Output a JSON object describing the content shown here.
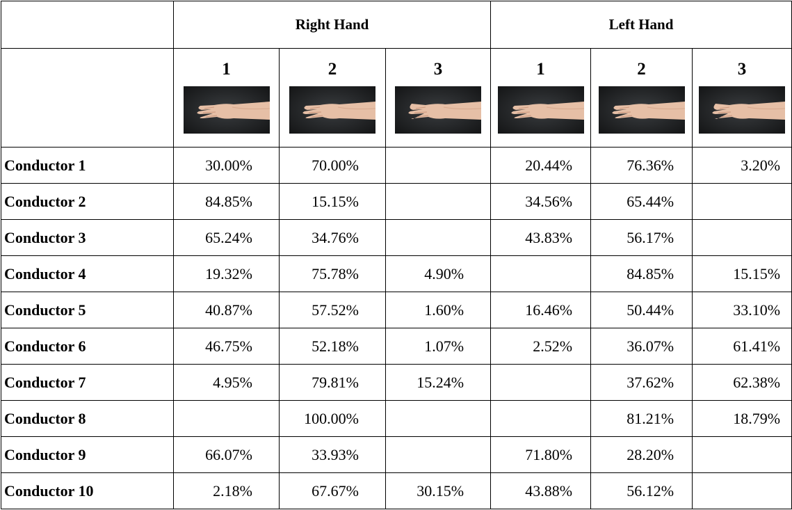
{
  "header": {
    "groups": [
      "Right Hand",
      "Left Hand"
    ],
    "columns": [
      "1",
      "2",
      "3",
      "1",
      "2",
      "3"
    ]
  },
  "table": {
    "rows": [
      {
        "label": "Conductor 1",
        "values": [
          "30.00%",
          "70.00%",
          null,
          "20.44%",
          "76.36%",
          "3.20%"
        ]
      },
      {
        "label": "Conductor 2",
        "values": [
          "84.85%",
          "15.15%",
          null,
          "34.56%",
          "65.44%",
          null
        ]
      },
      {
        "label": "Conductor 3",
        "values": [
          "65.24%",
          "34.76%",
          null,
          "43.83%",
          "56.17%",
          null
        ]
      },
      {
        "label": "Conductor 4",
        "values": [
          "19.32%",
          "75.78%",
          "4.90%",
          null,
          "84.85%",
          "15.15%"
        ]
      },
      {
        "label": "Conductor 5",
        "values": [
          "40.87%",
          "57.52%",
          "1.60%",
          "16.46%",
          "50.44%",
          "33.10%"
        ]
      },
      {
        "label": "Conductor 6",
        "values": [
          "46.75%",
          "52.18%",
          "1.07%",
          "2.52%",
          "36.07%",
          "61.41%"
        ]
      },
      {
        "label": "Conductor 7",
        "values": [
          "4.95%",
          "79.81%",
          "15.24%",
          null,
          "37.62%",
          "62.38%"
        ]
      },
      {
        "label": "Conductor 8",
        "values": [
          null,
          "100.00%",
          null,
          null,
          "81.21%",
          "18.79%"
        ]
      },
      {
        "label": "Conductor 9",
        "values": [
          "66.07%",
          "33.93%",
          null,
          "71.80%",
          "28.20%",
          null
        ]
      },
      {
        "label": "Conductor 10",
        "values": [
          "2.18%",
          "67.67%",
          "30.15%",
          "43.88%",
          "56.12%",
          null
        ]
      }
    ]
  }
}
